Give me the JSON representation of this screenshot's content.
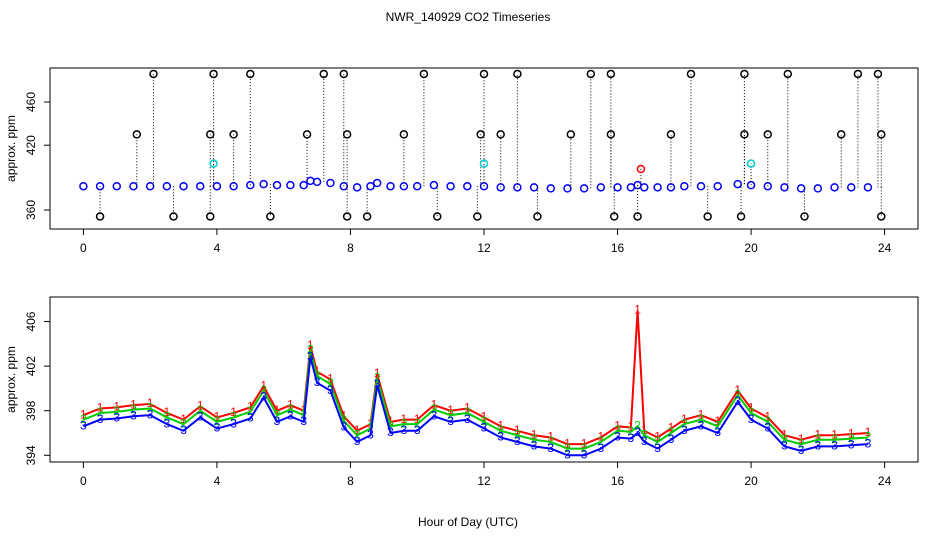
{
  "title": "NWR_140929  CO2 Timeseries",
  "xlabel": "Hour of Day (UTC)",
  "chart_data": [
    {
      "type": "scatter",
      "ylabel": "approx. ppm",
      "xlim": [
        -1,
        25
      ],
      "xticks": [
        0,
        4,
        8,
        12,
        16,
        20,
        24
      ],
      "ylim": [
        342.4,
        491.5
      ],
      "yticks": [
        360,
        420,
        460
      ],
      "series": [
        {
          "color": "#0000ff",
          "x": [
            0,
            0.5,
            1,
            1.5,
            2,
            2.5,
            3,
            3.5,
            4,
            4.5,
            5,
            5.4,
            5.8,
            6.2,
            6.6,
            6.8,
            7,
            7.4,
            7.8,
            8.2,
            8.6,
            8.8,
            9.2,
            9.6,
            10,
            10.5,
            11,
            11.5,
            12,
            12.5,
            13,
            13.5,
            14,
            14.5,
            15,
            15.5,
            16,
            16.4,
            16.6,
            16.8,
            17.2,
            17.6,
            18,
            18.5,
            19,
            19.6,
            20,
            20.5,
            21,
            21.5,
            22,
            22.5,
            23,
            23.5
          ],
          "values": [
            382,
            382,
            382,
            382,
            382,
            382,
            382,
            382,
            382,
            382,
            383,
            384,
            383,
            383,
            383,
            387,
            386,
            385,
            382,
            381,
            382,
            385,
            382,
            382,
            382,
            383,
            382,
            382,
            382,
            381,
            381,
            381,
            380,
            380,
            380,
            381,
            381,
            381,
            383,
            381,
            381,
            381,
            382,
            382,
            382,
            384,
            383,
            382,
            381,
            380,
            380,
            381,
            381,
            381
          ]
        },
        {
          "color": "#000000",
          "x": [
            2.1,
            3.9,
            5.0,
            7.2,
            7.8,
            10.2,
            12.0,
            13.0,
            15.2,
            15.8,
            18.2,
            19.8,
            21.1,
            23.2,
            23.8,
            1.6,
            3.8,
            4.5,
            6.7,
            7.9,
            9.6,
            11.9,
            12.5,
            14.6,
            15.8,
            17.6,
            19.8,
            20.5,
            22.7,
            23.9,
            0.5,
            2.7,
            3.8,
            5.6,
            7.9,
            8.5,
            10.6,
            11.8,
            13.6,
            15.9,
            16.6,
            18.7,
            19.7,
            21.6,
            23.9
          ],
          "values": [
            486,
            486,
            486,
            486,
            486,
            486,
            486,
            486,
            486,
            486,
            486,
            486,
            486,
            486,
            486,
            430,
            430,
            430,
            430,
            430,
            430,
            430,
            430,
            430,
            430,
            430,
            430,
            430,
            430,
            430,
            354,
            354,
            354,
            354,
            354,
            354,
            354,
            354,
            354,
            354,
            354,
            354,
            354,
            354,
            354
          ]
        },
        {
          "color": "#00cccc",
          "x": [
            3.9,
            12.0,
            20.0
          ],
          "values": [
            403,
            403,
            403
          ]
        },
        {
          "color": "#ff0000",
          "x": [
            16.7
          ],
          "values": [
            398
          ]
        }
      ]
    },
    {
      "type": "line",
      "ylabel": "approx. ppm",
      "xlim": [
        -1,
        25
      ],
      "xticks": [
        0,
        4,
        8,
        12,
        16,
        20,
        24
      ],
      "ylim": [
        393.4,
        408.2
      ],
      "yticks": [
        394,
        398,
        402,
        406
      ],
      "x": [
        0,
        0.5,
        1,
        1.5,
        2,
        2.5,
        3,
        3.5,
        4,
        4.5,
        5,
        5.4,
        5.8,
        6.2,
        6.6,
        6.8,
        7,
        7.4,
        7.8,
        8.2,
        8.6,
        8.8,
        9.2,
        9.6,
        10,
        10.5,
        11,
        11.5,
        12,
        12.5,
        13,
        13.5,
        14,
        14.5,
        15,
        15.5,
        16,
        16.4,
        16.6,
        16.8,
        17.2,
        17.6,
        18,
        18.5,
        19,
        19.6,
        20,
        20.5,
        21,
        21.5,
        22,
        22.5,
        23,
        23.5
      ],
      "series": [
        {
          "marker": "1",
          "color": "#ff0000",
          "values": [
            397.6,
            398.2,
            398.3,
            398.5,
            398.6,
            397.8,
            397.2,
            398.4,
            397.4,
            397.8,
            398.3,
            400.2,
            398.0,
            398.5,
            398.0,
            403.8,
            401.5,
            400.8,
            397.5,
            396.2,
            396.8,
            401.3,
            397.0,
            397.2,
            397.2,
            398.5,
            398.0,
            398.2,
            397.4,
            396.6,
            396.2,
            395.8,
            395.6,
            395.0,
            395.0,
            395.6,
            396.6,
            396.5,
            407.0,
            396.2,
            395.6,
            396.4,
            397.2,
            397.6,
            397.0,
            399.8,
            398.2,
            397.4,
            395.8,
            395.4,
            395.8,
            395.8,
            395.9,
            396.0
          ]
        },
        {
          "marker": "2",
          "color": "#00cc00",
          "values": [
            397.2,
            397.8,
            397.9,
            398.1,
            398.2,
            397.4,
            396.8,
            398.0,
            397.0,
            397.4,
            397.9,
            399.8,
            397.6,
            398.1,
            397.6,
            403.4,
            401.1,
            400.4,
            397.1,
            395.8,
            396.4,
            400.9,
            396.6,
            396.8,
            396.8,
            398.1,
            397.6,
            397.8,
            397.0,
            396.2,
            395.8,
            395.4,
            395.2,
            394.6,
            394.6,
            395.2,
            396.2,
            396.1,
            396.6,
            395.8,
            395.2,
            396.0,
            396.8,
            397.2,
            396.6,
            399.4,
            397.8,
            397.0,
            395.4,
            395.0,
            395.4,
            395.4,
            395.5,
            395.6
          ]
        },
        {
          "marker": "3",
          "color": "#0000ff",
          "values": [
            396.6,
            397.2,
            397.3,
            397.5,
            397.6,
            396.8,
            396.2,
            397.4,
            396.4,
            396.8,
            397.3,
            399.2,
            397.0,
            397.5,
            397.0,
            402.8,
            400.5,
            399.8,
            396.5,
            395.2,
            395.8,
            400.3,
            396.0,
            396.2,
            396.2,
            397.5,
            397.0,
            397.2,
            396.4,
            395.6,
            395.2,
            394.8,
            394.6,
            394.0,
            394.0,
            394.6,
            395.6,
            395.5,
            396.0,
            395.2,
            394.6,
            395.4,
            396.2,
            396.6,
            396.0,
            398.8,
            397.2,
            396.4,
            394.8,
            394.4,
            394.8,
            394.8,
            394.9,
            395.0
          ]
        }
      ]
    }
  ]
}
